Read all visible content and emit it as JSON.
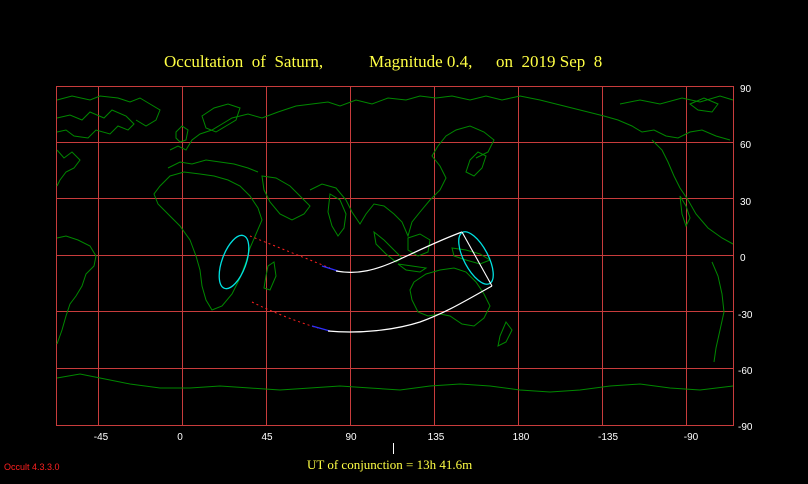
{
  "title": {
    "part1": "Occultation  of  Saturn,",
    "part2": "Magnitude 0.4,",
    "part3": "on  2019 Sep  8"
  },
  "footer": {
    "conjunction": "UT of conjunction = 13h 41.6m",
    "version": "Occult 4.3.3.0"
  },
  "map": {
    "lon_labels": [
      "-45",
      "0",
      "45",
      "90",
      "135",
      "180",
      "-135",
      "-90"
    ],
    "lat_labels": [
      "90",
      "60",
      "30",
      "0",
      "-30",
      "-60",
      "-90"
    ]
  },
  "colors": {
    "background": "#000000",
    "grid": "#c83c3c",
    "coastline": "#008800",
    "title": "#ffff44",
    "labels": "#ffffff",
    "track": "#ffffff",
    "shadow_outline": "#00e0e0",
    "dotted_track": "#ff2020",
    "blue_segment": "#3030ff",
    "version": "#ff2020"
  }
}
